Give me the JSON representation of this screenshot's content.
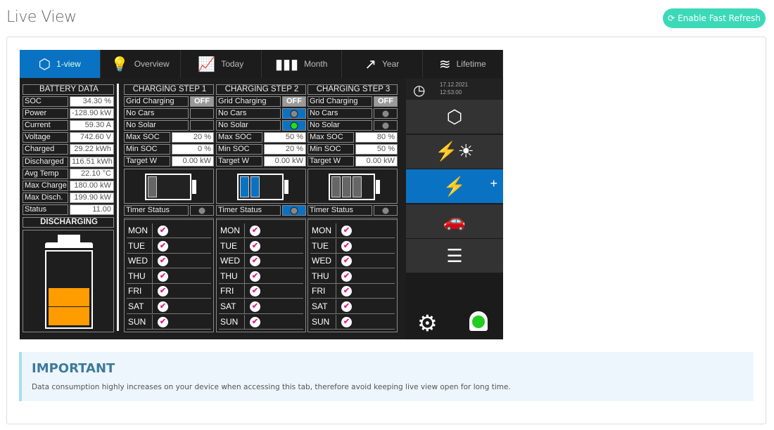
{
  "page": {
    "title": "Live View",
    "fast_refresh": "Enable Fast Refresh"
  },
  "tabs": [
    {
      "label": "1-view",
      "icon": "cube-icon",
      "glyph": "⬡"
    },
    {
      "label": "Overview",
      "icon": "lightbulb-icon",
      "glyph": "💡"
    },
    {
      "label": "Today",
      "icon": "area-chart-icon",
      "glyph": "📈"
    },
    {
      "label": "Month",
      "icon": "bar-chart-icon",
      "glyph": "▮▮▮"
    },
    {
      "label": "Year",
      "icon": "growth-chart-icon",
      "glyph": "↗"
    },
    {
      "label": "Lifetime",
      "icon": "coins-icon",
      "glyph": "≋"
    }
  ],
  "battery": {
    "header": "BATTERY DATA",
    "rows": [
      [
        "SOC",
        "34.30 %"
      ],
      [
        "Power",
        "-128.90 kW"
      ],
      [
        "Current",
        "59.30 A"
      ],
      [
        "Voltage",
        "742.60 V"
      ],
      [
        "Charged",
        "29.22 kWh"
      ],
      [
        "Discharged",
        "116.51 kWh"
      ],
      [
        "Avg Temp",
        "22.10 °C"
      ],
      [
        "Max Charge",
        "180.00 kW"
      ],
      [
        "Max Disch.",
        "199.90 kW"
      ],
      [
        "Status",
        "11.00"
      ]
    ],
    "state": "DISCHARGING",
    "fill_segments": 2,
    "fill_color": "#ff9c00"
  },
  "steps": [
    {
      "header": "CHARGING STEP  1",
      "grid_label": "Grid Charging",
      "grid": "OFF",
      "no_cars": "No Cars",
      "no_cars_state": "none",
      "no_solar": "No Solar",
      "no_solar_state": "none",
      "max_soc_label": "Max SOC",
      "max_soc": "20 %",
      "min_soc_label": "Min SOC",
      "min_soc": "0 %",
      "target_label": "Target W",
      "target": "0.00 kW",
      "bars": 1,
      "bar_color": "#666",
      "timer_label": "Timer Status",
      "timer_active": false
    },
    {
      "header": "CHARGING STEP  2",
      "grid_label": "Grid Charging",
      "grid": "OFF",
      "no_cars": "No Cars",
      "no_cars_state": "grey",
      "no_solar": "No Solar",
      "no_solar_state": "green",
      "max_soc_label": "Max SOC",
      "max_soc": "50 %",
      "min_soc_label": "Min SOC",
      "min_soc": "20 %",
      "target_label": "Target W",
      "target": "0.00 kW",
      "bars": 2,
      "bar_color": "#0a72c2",
      "timer_label": "Timer Status",
      "timer_active": true
    },
    {
      "header": "CHARGING STEP  3",
      "grid_label": "Grid Charging",
      "grid": "OFF",
      "no_cars": "No Cars",
      "no_cars_state": "grey-off",
      "no_solar": "No Solar",
      "no_solar_state": "grey-off",
      "max_soc_label": "Max SOC",
      "max_soc": "80 %",
      "min_soc_label": "Min SOC",
      "min_soc": "50 %",
      "target_label": "Target W",
      "target": "0.00 kW",
      "bars": 3,
      "bar_color": "#666",
      "timer_label": "Timer Status",
      "timer_active": false
    }
  ],
  "days": [
    "MON",
    "TUE",
    "WED",
    "THU",
    "FRI",
    "SAT",
    "SUN"
  ],
  "sidebar": {
    "date": "17.12.2021",
    "time": "12:53:00",
    "items": [
      "cube-icon",
      "grid-solar-icon",
      "battery-charge-icon",
      "car-network-icon",
      "sliders-icon"
    ],
    "active": 2,
    "plus": "+"
  },
  "alert": {
    "title": "IMPORTANT",
    "text": "Data consumption highly increases on your device when accessing this tab, therefore avoid keeping live view open for long time."
  },
  "colors": {
    "accent": "#0a72c2",
    "button": "#3cd9b9",
    "check": "#e0218a",
    "bell": "#22cc22"
  }
}
